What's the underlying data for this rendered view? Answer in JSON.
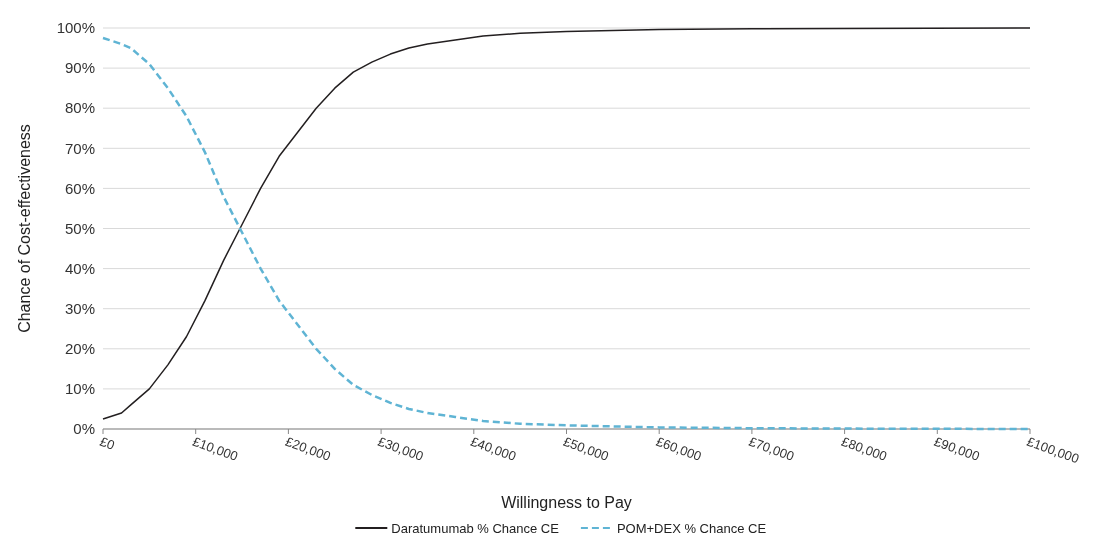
{
  "chart_data": {
    "type": "line",
    "xlabel": "Willingness to Pay",
    "ylabel": "Chance of Cost-effectiveness",
    "grid": "y",
    "legend": "bottom",
    "xlim": [
      0,
      100000
    ],
    "ylim": [
      0,
      100
    ],
    "xticks": [
      {
        "value": 0,
        "label": "£0"
      },
      {
        "value": 10000,
        "label": "£10,000"
      },
      {
        "value": 20000,
        "label": "£20,000"
      },
      {
        "value": 30000,
        "label": "£30,000"
      },
      {
        "value": 40000,
        "label": "£40,000"
      },
      {
        "value": 50000,
        "label": "£50,000"
      },
      {
        "value": 60000,
        "label": "£60,000"
      },
      {
        "value": 70000,
        "label": "£70,000"
      },
      {
        "value": 80000,
        "label": "£80,000"
      },
      {
        "value": 90000,
        "label": "£90,000"
      },
      {
        "value": 100000,
        "label": "£100,000"
      }
    ],
    "yticks": [
      {
        "value": 0,
        "label": "0%"
      },
      {
        "value": 10,
        "label": "10%"
      },
      {
        "value": 20,
        "label": "20%"
      },
      {
        "value": 30,
        "label": "30%"
      },
      {
        "value": 40,
        "label": "40%"
      },
      {
        "value": 50,
        "label": "50%"
      },
      {
        "value": 60,
        "label": "60%"
      },
      {
        "value": 70,
        "label": "70%"
      },
      {
        "value": 80,
        "label": "80%"
      },
      {
        "value": 90,
        "label": "90%"
      },
      {
        "value": 100,
        "label": "100%"
      }
    ],
    "x": [
      0,
      2000,
      3000,
      5000,
      7000,
      9000,
      11000,
      13000,
      15000,
      17000,
      19000,
      21000,
      23000,
      25000,
      27000,
      29000,
      31000,
      33000,
      35000,
      38000,
      41000,
      45000,
      50000,
      60000,
      70000,
      80000,
      100000
    ],
    "series": [
      {
        "name": "Daratumumab % Chance CE",
        "color": "#231f20",
        "line_style": "solid",
        "values": [
          2.5,
          4,
          6,
          10,
          16,
          23,
          32,
          42,
          51,
          60,
          68,
          74,
          80,
          85,
          89,
          91.5,
          93.5,
          95,
          96,
          97,
          98,
          98.7,
          99.1,
          99.6,
          99.8,
          99.9,
          100
        ]
      },
      {
        "name": "POM+DEX % Chance CE",
        "color": "#5fb4d4",
        "line_style": "dashed",
        "values": [
          97.5,
          96,
          95,
          91,
          85,
          78,
          69,
          58,
          49,
          40,
          32,
          26,
          20,
          15,
          11,
          8.5,
          6.5,
          5,
          4,
          3,
          2,
          1.3,
          0.9,
          0.4,
          0.2,
          0.1,
          0
        ]
      }
    ]
  }
}
